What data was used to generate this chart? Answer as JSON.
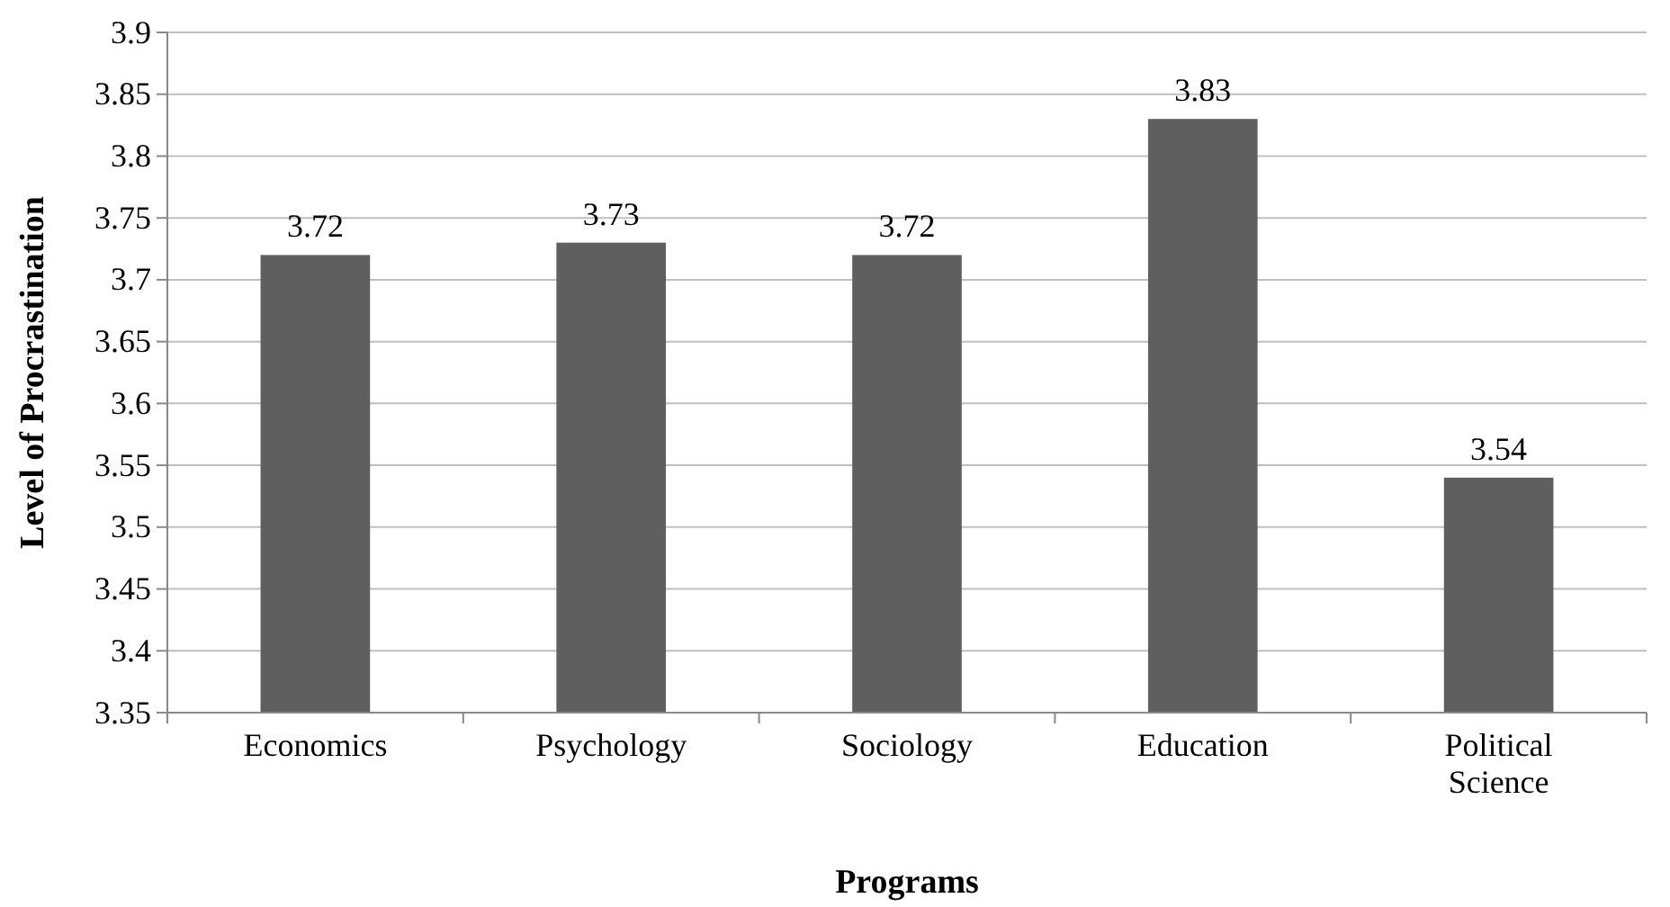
{
  "chart_data": {
    "type": "bar",
    "xlabel": "Programs",
    "ylabel": "Level of Procrastination",
    "categories": [
      "Economics",
      "Psychology",
      "Sociology",
      "Education",
      "Political Science"
    ],
    "values": [
      3.72,
      3.73,
      3.72,
      3.83,
      3.54
    ],
    "color": "#5f5f5f",
    "ylim": [
      3.35,
      3.9
    ],
    "yticks": [
      3.35,
      3.4,
      3.45,
      3.5,
      3.55,
      3.6,
      3.65,
      3.7,
      3.75,
      3.8,
      3.85,
      3.9
    ],
    "grid": "y",
    "data_labels": true
  }
}
